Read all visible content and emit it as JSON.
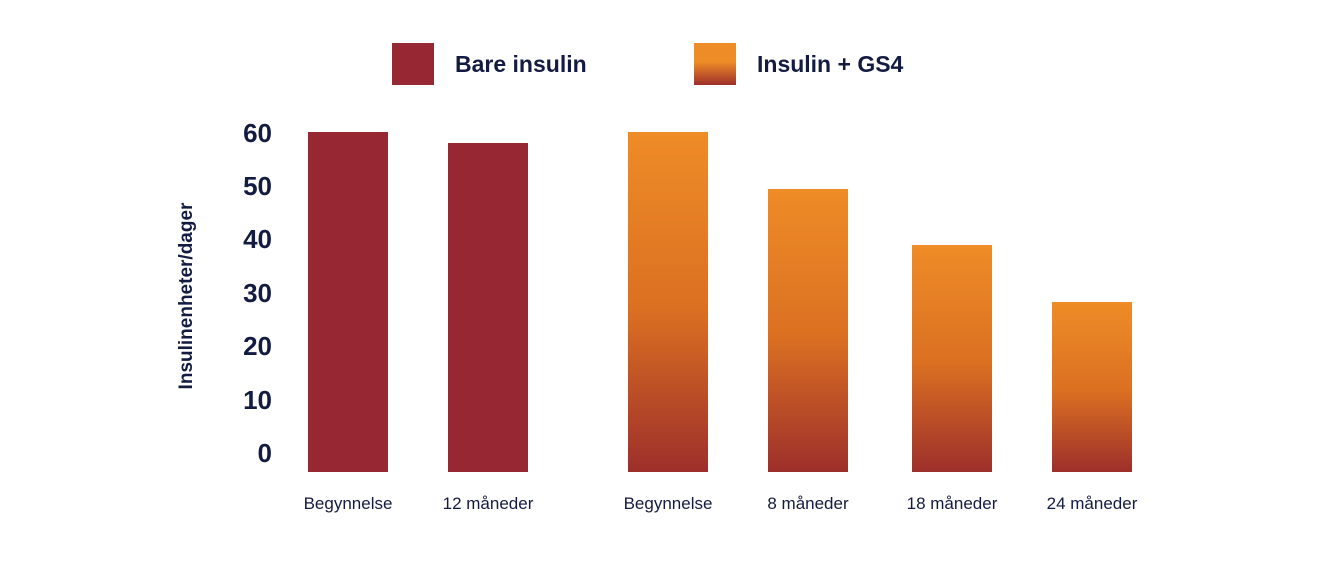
{
  "chart_data": {
    "type": "bar",
    "title": "",
    "xlabel": "",
    "ylabel": "Insulinenheter/dager",
    "ylim": [
      0,
      60
    ],
    "yticks": [
      0,
      10,
      20,
      30,
      40,
      50,
      60
    ],
    "grid": false,
    "legend_position": "top",
    "legend": [
      {
        "label": "Bare insulin",
        "color": "#962733"
      },
      {
        "label": "Insulin + GS4",
        "gradient_top": "#ee8c27",
        "gradient_mid": "#db7022",
        "gradient_bottom": "#9d2f2b"
      }
    ],
    "bars": [
      {
        "category": "Begynnelse",
        "value": 60,
        "series": "Bare insulin"
      },
      {
        "category": "12 måneder",
        "value": 58,
        "series": "Bare insulin"
      },
      {
        "category": "Begynnelse",
        "value": 60,
        "series": "Insulin + GS4"
      },
      {
        "category": "8 måneder",
        "value": 50,
        "series": "Insulin + GS4"
      },
      {
        "category": "18 måneder",
        "value": 40,
        "series": "Insulin + GS4"
      },
      {
        "category": "24 måneder",
        "value": 30,
        "series": "Insulin + GS4"
      }
    ]
  },
  "colors": {
    "text_navy": "#131b41",
    "bar_red": "#962733",
    "bar_orange_top": "#ee8c27",
    "bar_orange_mid": "#db7022",
    "bar_orange_bottom": "#9d2f2b",
    "background": "#ffffff"
  }
}
